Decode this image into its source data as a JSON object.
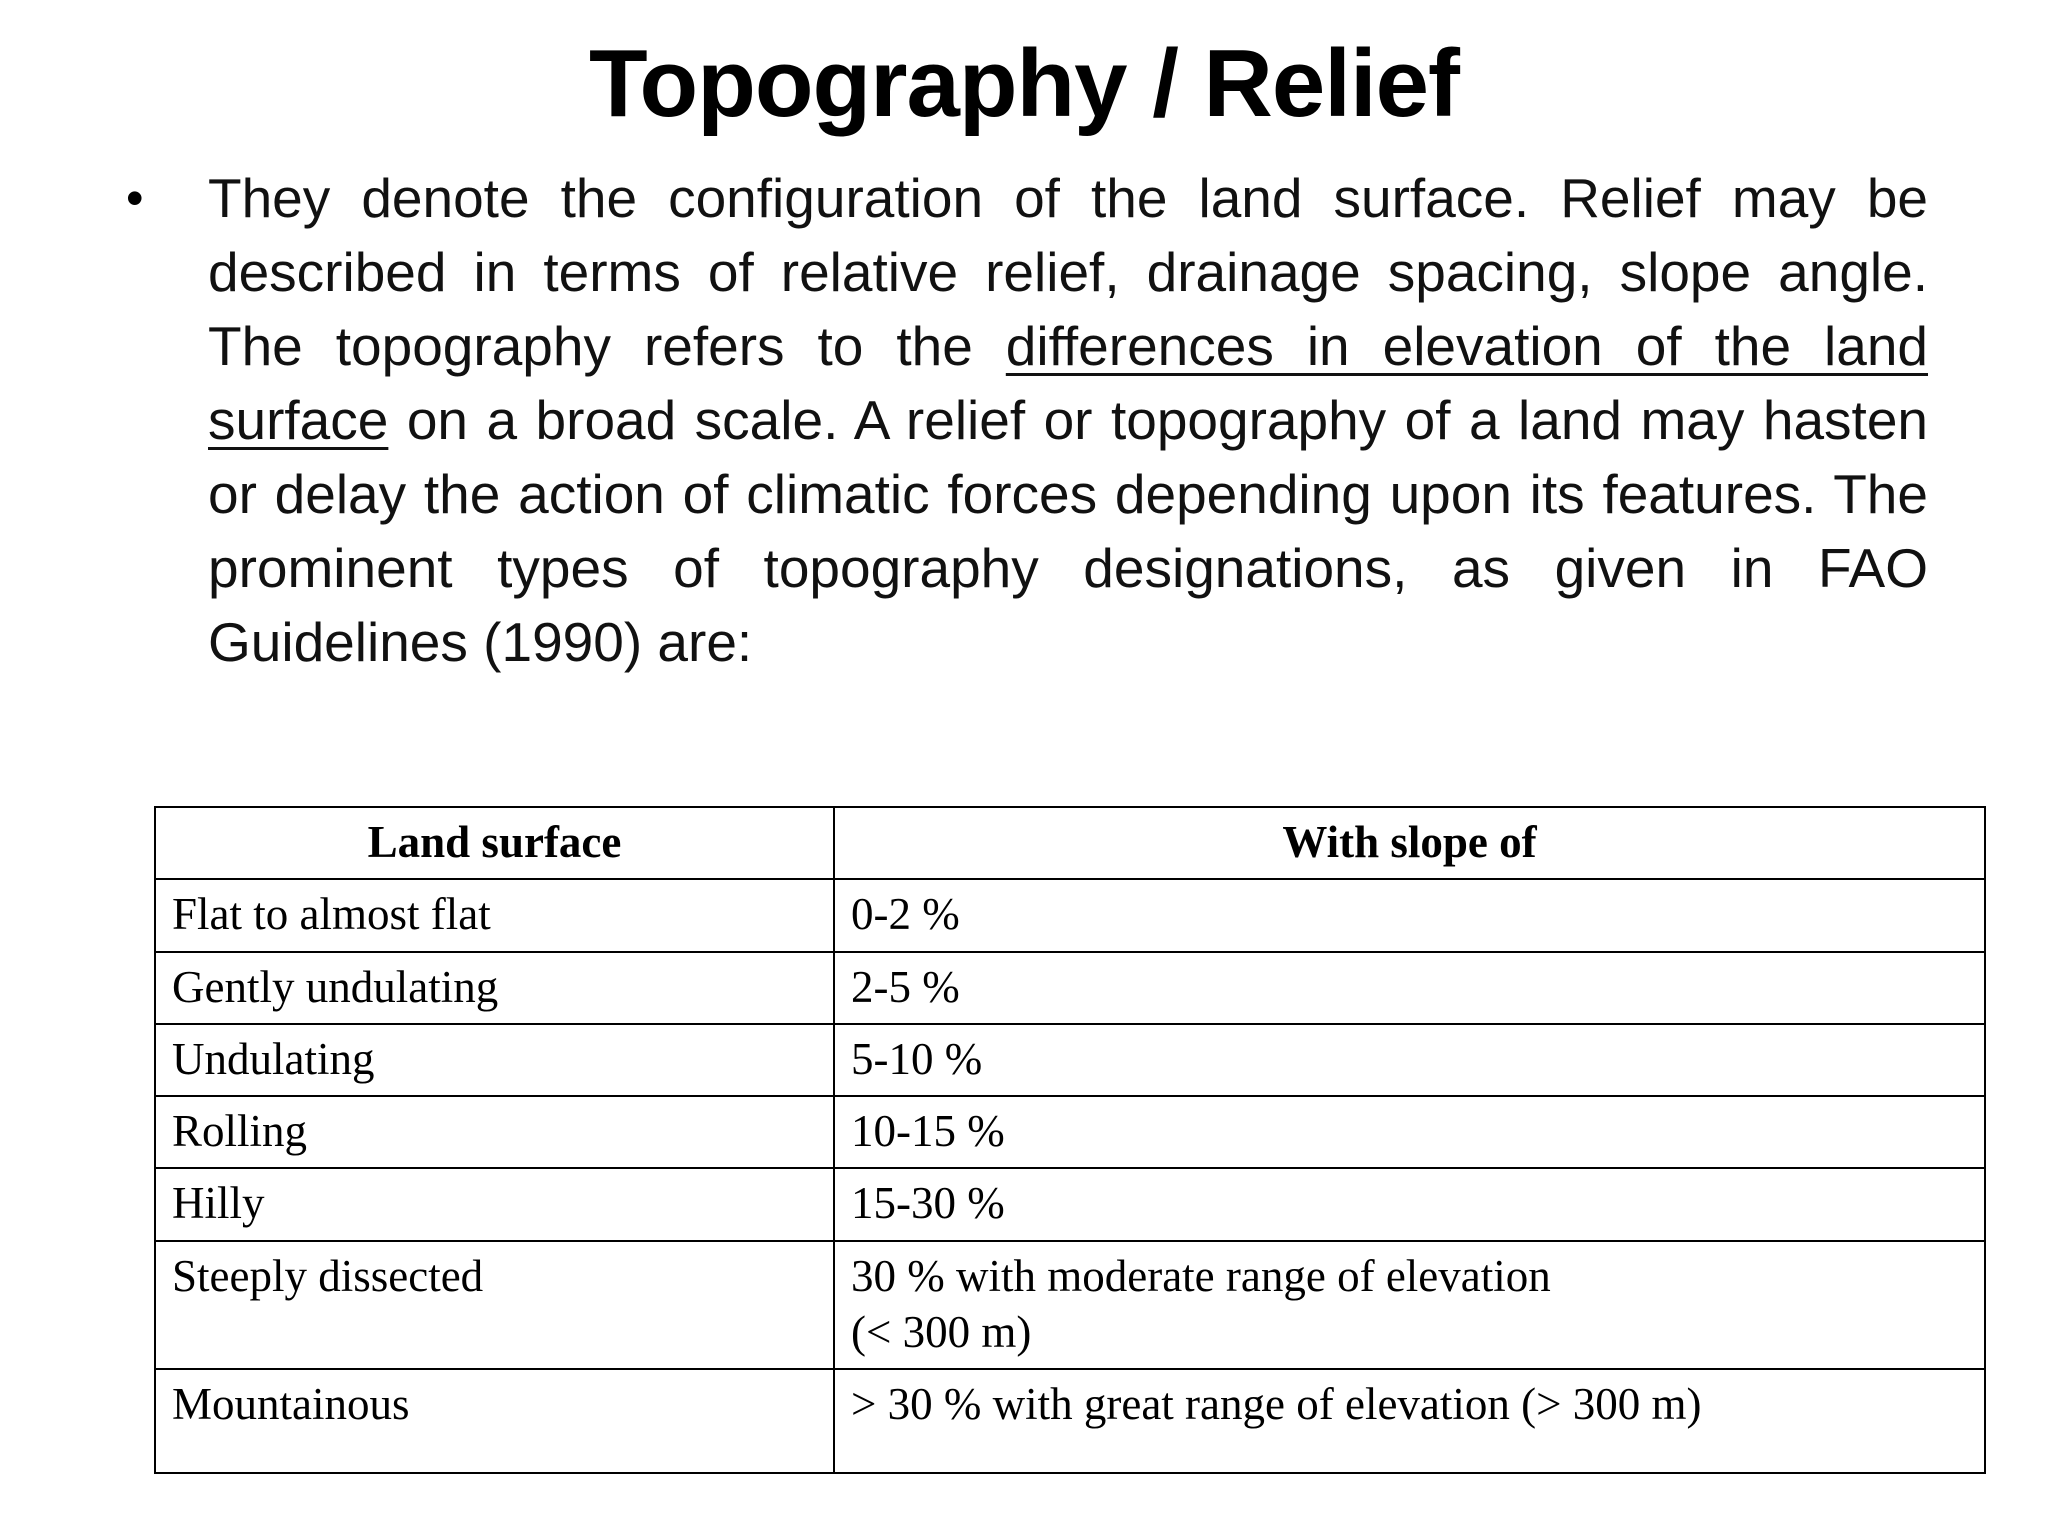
{
  "slide": {
    "title": "Topography / Relief",
    "bullet_char": "•",
    "paragraph": {
      "before": "They denote the configuration of the land surface. Relief may be described in terms of relative relief, drainage spacing, slope angle. The topography refers to the ",
      "underlined": "differences in elevation of the land surface",
      "after": " on a broad scale. A relief or topography of a land may hasten or delay the action of climatic forces depending upon its features. The prominent types of topography designations, as given in FAO Guidelines (1990) are:"
    },
    "table": {
      "headers": [
        "Land surface",
        "With slope of"
      ],
      "rows": [
        {
          "land": "Flat to almost flat",
          "slope": "0-2 %"
        },
        {
          "land": "Gently undulating",
          "slope": "2-5 %"
        },
        {
          "land": "Undulating",
          "slope": "5-10 %"
        },
        {
          "land": "Rolling",
          "slope": "10-15 %"
        },
        {
          "land": "Hilly",
          "slope": "15-30 %"
        },
        {
          "land": "Steeply dissected",
          "slope": "30 % with moderate range of elevation\n(< 300 m)"
        },
        {
          "land": "Mountainous",
          "slope": "> 30 % with great range of elevation (> 300 m)"
        }
      ]
    },
    "colors": {
      "background": "#ffffff",
      "text": "#000000"
    }
  }
}
